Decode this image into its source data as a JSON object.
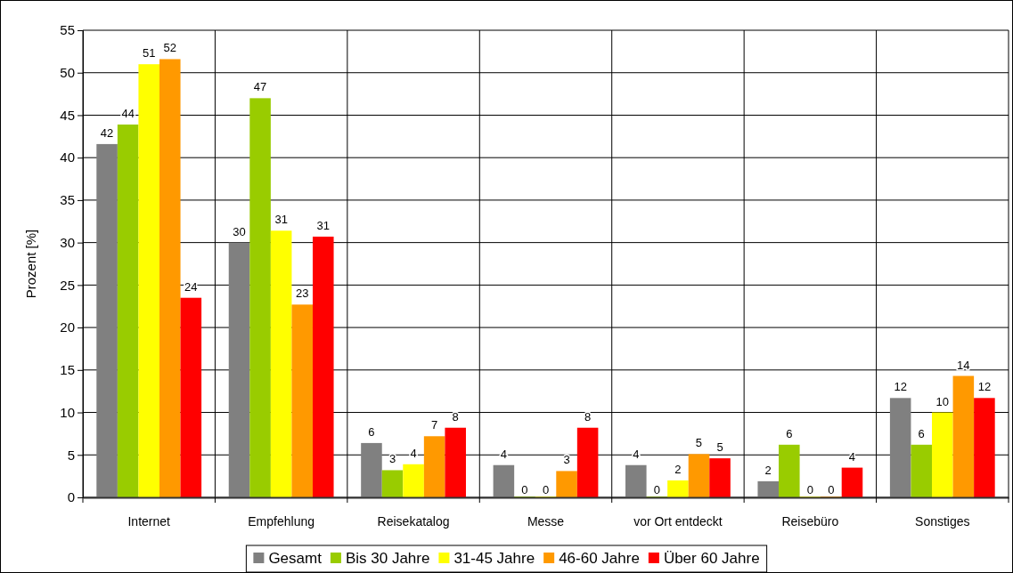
{
  "chart_data": {
    "type": "bar",
    "ylabel": "Prozent [%]",
    "categories": [
      "Internet",
      "Empfehlung",
      "Reisekatalog",
      "Messe",
      "vor Ort entdeckt",
      "Reisebüro",
      "Sonstiges"
    ],
    "series": [
      {
        "name": "Gesamt",
        "color": "#808080",
        "values": [
          41.6,
          30.0,
          6.4,
          3.8,
          3.8,
          1.9,
          11.7
        ],
        "value_labels": [
          "42",
          "30",
          "6",
          "4",
          "4",
          "2",
          "12"
        ]
      },
      {
        "name": "Bis 30 Jahre",
        "color": "#99cc00",
        "values": [
          43.9,
          47.0,
          3.2,
          0,
          0,
          6.2,
          6.2
        ],
        "value_labels": [
          "44",
          "47",
          "3",
          "0",
          "0",
          "6",
          "6"
        ]
      },
      {
        "name": "31-45 Jahre",
        "color": "#ffff00",
        "values": [
          51.0,
          31.4,
          3.9,
          0,
          2.0,
          0,
          10.0
        ],
        "value_labels": [
          "51",
          "31",
          "4",
          "0",
          "2",
          "0",
          "10"
        ]
      },
      {
        "name": "46-60 Jahre",
        "color": "#ff9900",
        "values": [
          51.6,
          22.7,
          7.2,
          3.1,
          5.1,
          0,
          14.3
        ],
        "value_labels": [
          "52",
          "23",
          "7",
          "3",
          "5",
          "0",
          "14"
        ]
      },
      {
        "name": "Über 60 Jahre",
        "color": "#ff0000",
        "values": [
          23.5,
          30.7,
          8.2,
          8.2,
          4.6,
          3.5,
          11.7
        ],
        "value_labels": [
          "24",
          "31",
          "8",
          "8",
          "5",
          "4",
          "12"
        ]
      }
    ],
    "ylim": [
      0,
      55
    ],
    "yticks": [
      0,
      5,
      10,
      15,
      20,
      25,
      30,
      35,
      40,
      45,
      50,
      55
    ],
    "grid": true,
    "legend": "bottom"
  }
}
